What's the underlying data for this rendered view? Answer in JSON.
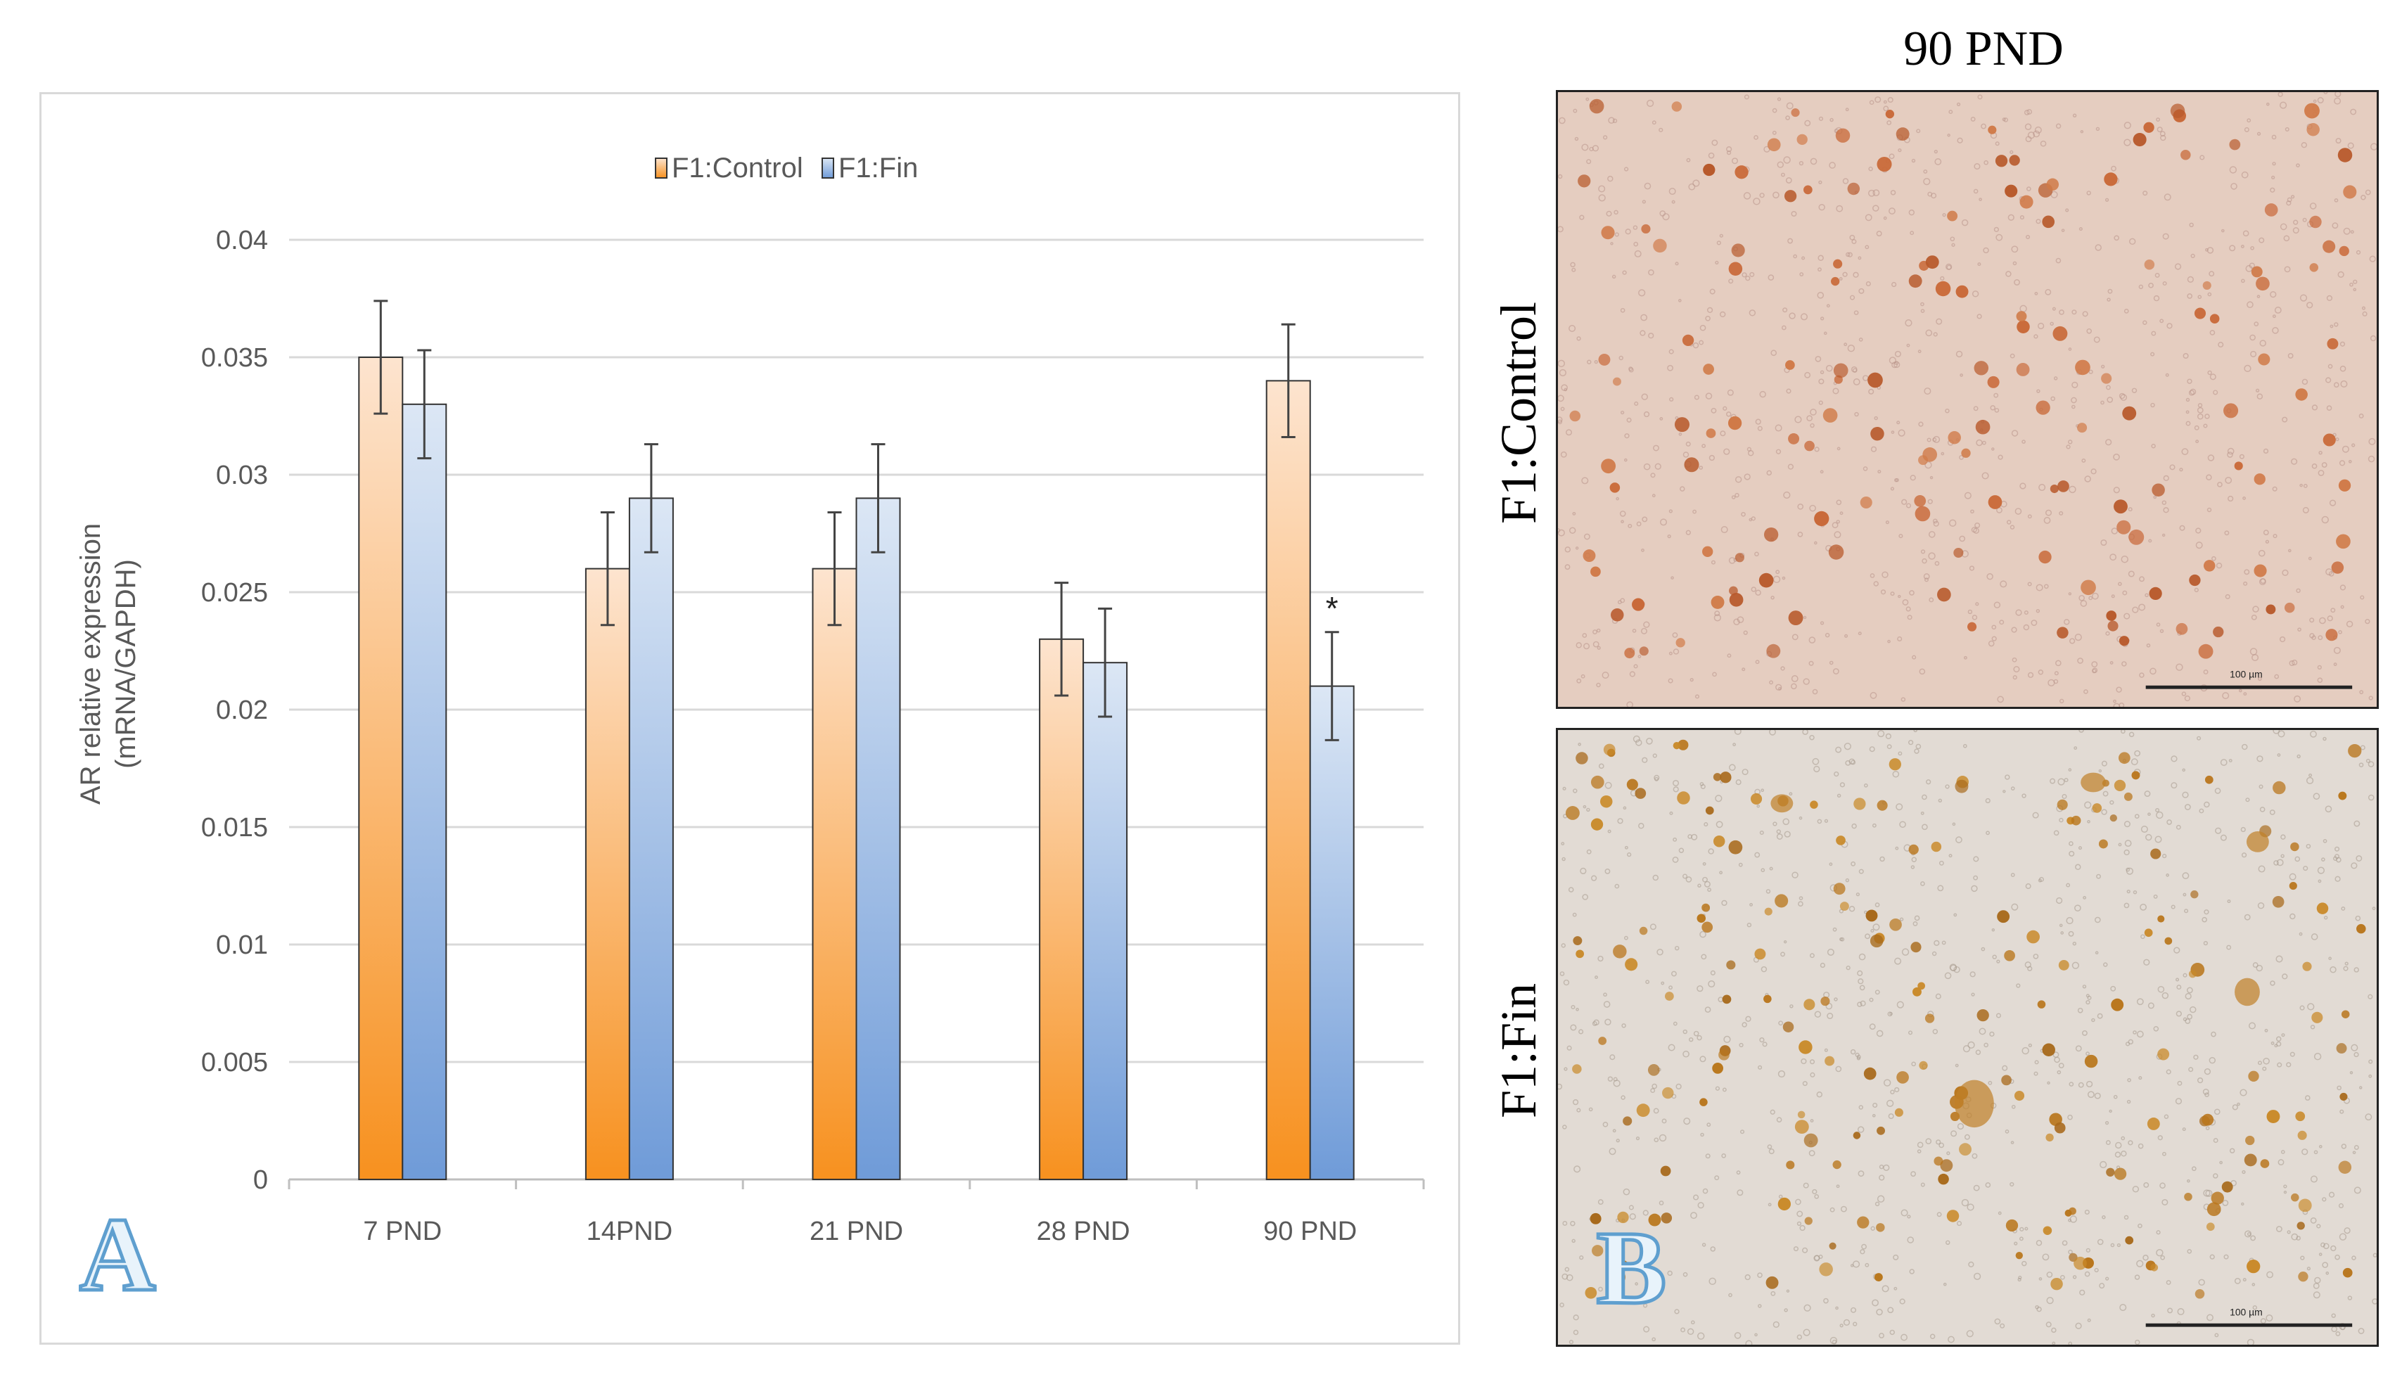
{
  "panel_a": {
    "letter": "A"
  },
  "panel_b": {
    "letter": "B",
    "title": "90 PND",
    "rows": [
      {
        "label": "F1:Control",
        "scale_text": "100 µm"
      },
      {
        "label": "F1:Fin",
        "scale_text": "100 µm"
      }
    ]
  },
  "chart_data": {
    "type": "bar",
    "categories": [
      "7 PND",
      "14PND",
      "21 PND",
      "28 PND",
      "90 PND"
    ],
    "series": [
      {
        "name": "F1:Control",
        "values": [
          0.035,
          0.026,
          0.026,
          0.023,
          0.034
        ],
        "errors": [
          0.0024,
          0.0024,
          0.0024,
          0.0024,
          0.0024
        ]
      },
      {
        "name": "F1:Fin",
        "values": [
          0.033,
          0.029,
          0.029,
          0.022,
          0.021
        ],
        "errors": [
          0.0023,
          0.0023,
          0.0023,
          0.0023,
          0.0023
        ]
      }
    ],
    "ylabel_line1": "AR relative expression",
    "ylabel_line2": "(mRNA/GAPDH)",
    "ylim": [
      0,
      0.04
    ],
    "yticks": [
      "0",
      "0.005",
      "0.01",
      "0.015",
      "0.02",
      "0.025",
      "0.03",
      "0.035",
      "0.04"
    ],
    "grid": true,
    "legend": "top-center",
    "colors": {
      "F1:Control": "#f79433",
      "F1:Fin": "#7ba3db"
    },
    "annotations": [
      {
        "text": "*",
        "category": "90 PND",
        "series": "F1:Fin"
      }
    ]
  }
}
